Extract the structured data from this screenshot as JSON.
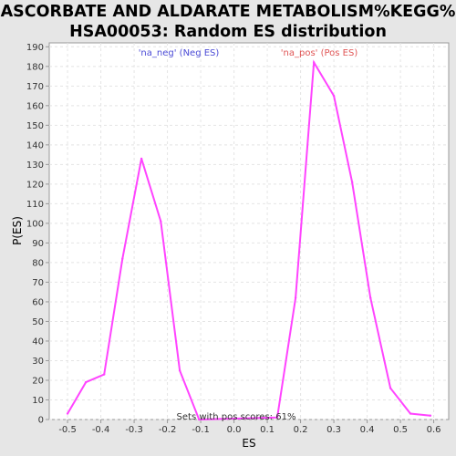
{
  "chart_data": {
    "type": "line",
    "title_line1": "ASCORBATE AND ALDARATE METABOLISM%KEGG%",
    "title_line2": "HSA00053: Random ES distribution",
    "xlabel": "ES",
    "ylabel": "P(ES)",
    "xlim": [
      -0.555,
      0.645
    ],
    "ylim": [
      0,
      192
    ],
    "xticks": [
      -0.5,
      -0.4,
      -0.3,
      -0.2,
      -0.1,
      0.0,
      0.1,
      0.2,
      0.3,
      0.4,
      0.5,
      0.6
    ],
    "xtick_labels": [
      "-0.5",
      "-0.4",
      "-0.3",
      "-0.2",
      "-0.1",
      "0.0",
      "0.1",
      "0.2",
      "0.3",
      "0.4",
      "0.5",
      "0.6"
    ],
    "yticks": [
      0,
      10,
      20,
      30,
      40,
      50,
      60,
      70,
      80,
      90,
      100,
      110,
      120,
      130,
      140,
      150,
      160,
      170,
      180,
      190
    ],
    "ytick_labels": [
      "0",
      "10",
      "20",
      "30",
      "40",
      "50",
      "60",
      "70",
      "80",
      "90",
      "100",
      "110",
      "120",
      "130",
      "140",
      "150",
      "160",
      "170",
      "180",
      "190"
    ],
    "grid": true,
    "series": [
      {
        "name": "Random ES distribution",
        "color": "#ff44ff",
        "x": [
          -0.5,
          -0.445,
          -0.39,
          -0.335,
          -0.278,
          -0.22,
          -0.163,
          -0.105,
          0.13,
          0.185,
          0.24,
          0.3,
          0.355,
          0.41,
          0.47,
          0.53,
          0.59
        ],
        "y": [
          3,
          19,
          23,
          82,
          133,
          101,
          25,
          0,
          1,
          62,
          182,
          165,
          121,
          62,
          16,
          3,
          2
        ]
      }
    ],
    "legend": [
      {
        "label": "'na_neg' (Neg ES)",
        "color": "#4b4bd6",
        "placement": "top-left"
      },
      {
        "label": "'na_pos' (Pos ES)",
        "color": "#e05555",
        "placement": "top-right"
      }
    ],
    "annotation": "Sets with pos scores: 61%",
    "colors": {
      "background": "#e6e6e6",
      "plot_bg": "#ffffff",
      "grid": "#e4e4e4",
      "axis": "#999999"
    }
  }
}
